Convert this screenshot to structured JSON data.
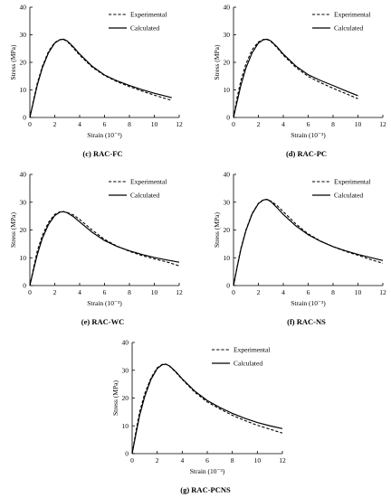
{
  "xlabel": "Strain (10⁻³)",
  "ylabel": "Stress (MPa)",
  "legend": {
    "experimental": "Experimental",
    "calculated": "Calculated"
  },
  "chart_data": [
    {
      "type": "line",
      "caption": "(c) RAC-FC",
      "xlim": [
        0,
        12
      ],
      "ylim": [
        0,
        40
      ],
      "xticks": [
        0,
        2,
        4,
        6,
        8,
        10,
        12
      ],
      "yticks": [
        0,
        10,
        20,
        30,
        40
      ],
      "legend_position": "top-right",
      "grid": false,
      "series": [
        {
          "name": "Experimental",
          "style": "dashed",
          "x": [
            0,
            0.3,
            0.6,
            1.0,
            1.5,
            2.0,
            2.4,
            2.7,
            3.0,
            3.5,
            4.0,
            5.0,
            6.0,
            7.0,
            8.0,
            9.0,
            10.0,
            11.4
          ],
          "y": [
            0,
            6.5,
            12.5,
            18.5,
            24.0,
            27.2,
            28.2,
            28.3,
            27.6,
            25.2,
            22.6,
            18.3,
            15.2,
            13.0,
            11.2,
            9.6,
            8.1,
            6.2
          ]
        },
        {
          "name": "Calculated",
          "style": "solid",
          "x": [
            0,
            0.3,
            0.6,
            1.0,
            1.5,
            2.0,
            2.4,
            2.7,
            3.0,
            3.5,
            4.0,
            5.0,
            6.0,
            7.0,
            8.0,
            9.0,
            10.0,
            11.4
          ],
          "y": [
            0,
            6.0,
            11.8,
            18.0,
            23.5,
            27.0,
            28.2,
            28.4,
            27.8,
            25.6,
            23.0,
            18.6,
            15.4,
            13.3,
            11.6,
            10.1,
            8.8,
            7.2
          ]
        }
      ]
    },
    {
      "type": "line",
      "caption": "(d) RAC-PC",
      "xlim": [
        0,
        12
      ],
      "ylim": [
        0,
        40
      ],
      "xticks": [
        0,
        2,
        4,
        6,
        8,
        10,
        12
      ],
      "yticks": [
        0,
        10,
        20,
        30,
        40
      ],
      "legend_position": "top-right",
      "grid": false,
      "series": [
        {
          "name": "Experimental",
          "style": "dashed",
          "x": [
            0,
            0.3,
            0.6,
            1.0,
            1.5,
            2.0,
            2.4,
            2.7,
            3.0,
            3.5,
            4.0,
            5.0,
            6.0,
            7.0,
            8.0,
            9.0,
            10.0
          ],
          "y": [
            0,
            7.5,
            13.5,
            19.5,
            24.6,
            27.4,
            28.3,
            28.3,
            27.6,
            25.3,
            22.6,
            18.2,
            14.9,
            12.6,
            10.6,
            8.7,
            6.8
          ]
        },
        {
          "name": "Calculated",
          "style": "solid",
          "x": [
            0,
            0.3,
            0.6,
            1.0,
            1.5,
            2.0,
            2.4,
            2.7,
            3.0,
            3.5,
            4.0,
            5.0,
            6.0,
            7.0,
            8.0,
            9.0,
            10.0
          ],
          "y": [
            0,
            6.0,
            11.8,
            18.0,
            23.5,
            27.0,
            28.2,
            28.4,
            27.8,
            25.6,
            23.0,
            18.7,
            15.5,
            13.4,
            11.6,
            9.7,
            7.9
          ]
        }
      ]
    },
    {
      "type": "line",
      "caption": "(e) RAC-WC",
      "xlim": [
        0,
        12
      ],
      "ylim": [
        0,
        40
      ],
      "xticks": [
        0,
        2,
        4,
        6,
        8,
        10,
        12
      ],
      "yticks": [
        0,
        10,
        20,
        30,
        40
      ],
      "legend_position": "top-right",
      "grid": false,
      "series": [
        {
          "name": "Experimental",
          "style": "dashed",
          "x": [
            0,
            0.3,
            0.6,
            1.0,
            1.5,
            2.0,
            2.4,
            2.7,
            3.0,
            3.5,
            4.0,
            5.0,
            6.0,
            7.0,
            8.0,
            9.0,
            10.0,
            11.0,
            12.0
          ],
          "y": [
            0,
            6.5,
            12.5,
            18.0,
            22.8,
            25.6,
            26.5,
            26.6,
            26.3,
            25.4,
            23.8,
            20.0,
            16.6,
            14.2,
            12.3,
            10.8,
            9.6,
            8.5,
            7.1
          ]
        },
        {
          "name": "Calculated",
          "style": "solid",
          "x": [
            0,
            0.3,
            0.6,
            1.0,
            1.5,
            2.0,
            2.4,
            2.7,
            3.0,
            3.5,
            4.0,
            5.0,
            6.0,
            7.0,
            8.0,
            9.0,
            10.0,
            11.0,
            12.0
          ],
          "y": [
            0,
            5.8,
            11.2,
            17.0,
            22.0,
            25.2,
            26.4,
            26.6,
            26.2,
            24.8,
            22.9,
            19.2,
            16.2,
            14.1,
            12.5,
            11.2,
            10.1,
            9.2,
            8.4
          ]
        }
      ]
    },
    {
      "type": "line",
      "caption": "(f) RAC-NS",
      "xlim": [
        0,
        12
      ],
      "ylim": [
        0,
        40
      ],
      "xticks": [
        0,
        2,
        4,
        6,
        8,
        10,
        12
      ],
      "yticks": [
        0,
        10,
        20,
        30,
        40
      ],
      "legend_position": "top-right",
      "grid": false,
      "series": [
        {
          "name": "Experimental",
          "style": "dashed",
          "x": [
            0,
            0.3,
            0.6,
            1.0,
            1.5,
            2.0,
            2.4,
            2.7,
            3.0,
            3.5,
            4.0,
            5.0,
            6.0,
            7.0,
            8.0,
            9.0,
            10.0,
            11.0,
            12.0
          ],
          "y": [
            0,
            7.0,
            13.5,
            20.0,
            26.0,
            29.6,
            30.9,
            31.0,
            30.4,
            28.8,
            26.6,
            22.2,
            18.6,
            16.0,
            14.0,
            12.3,
            10.9,
            9.4,
            8.0
          ]
        },
        {
          "name": "Calculated",
          "style": "solid",
          "x": [
            0,
            0.3,
            0.6,
            1.0,
            1.5,
            2.0,
            2.4,
            2.7,
            3.0,
            3.5,
            4.0,
            5.0,
            6.0,
            7.0,
            8.0,
            9.0,
            10.0,
            11.0,
            12.0
          ],
          "y": [
            0,
            6.8,
            13.2,
            19.8,
            25.8,
            29.5,
            30.8,
            31.0,
            30.2,
            28.0,
            25.6,
            21.5,
            18.3,
            15.9,
            14.0,
            12.5,
            11.2,
            10.1,
            9.0
          ]
        }
      ]
    },
    {
      "type": "line",
      "caption": "(g) RAC-PCNS",
      "xlim": [
        0,
        12
      ],
      "ylim": [
        0,
        40
      ],
      "xticks": [
        0,
        2,
        4,
        6,
        8,
        10,
        12
      ],
      "yticks": [
        0,
        10,
        20,
        30,
        40
      ],
      "legend_position": "top-right",
      "grid": false,
      "series": [
        {
          "name": "Experimental",
          "style": "dashed",
          "x": [
            0,
            0.3,
            0.6,
            1.0,
            1.5,
            2.0,
            2.4,
            2.7,
            3.0,
            3.5,
            4.0,
            5.0,
            6.0,
            7.0,
            8.0,
            9.0,
            10.0,
            11.0,
            12.0
          ],
          "y": [
            0,
            8.0,
            15.0,
            21.5,
            27.2,
            30.9,
            32.1,
            32.2,
            31.4,
            29.2,
            26.7,
            22.1,
            18.6,
            16.1,
            13.8,
            11.9,
            10.2,
            8.8,
            7.4
          ]
        },
        {
          "name": "Calculated",
          "style": "solid",
          "x": [
            0,
            0.3,
            0.6,
            1.0,
            1.5,
            2.0,
            2.4,
            2.7,
            3.0,
            3.5,
            4.0,
            5.0,
            6.0,
            7.0,
            8.0,
            9.0,
            10.0,
            11.0,
            12.0
          ],
          "y": [
            0,
            7.0,
            13.8,
            20.5,
            26.7,
            30.6,
            32.0,
            32.2,
            31.5,
            29.4,
            26.9,
            22.5,
            19.1,
            16.6,
            14.5,
            12.7,
            11.2,
            10.0,
            9.0
          ]
        }
      ]
    }
  ]
}
